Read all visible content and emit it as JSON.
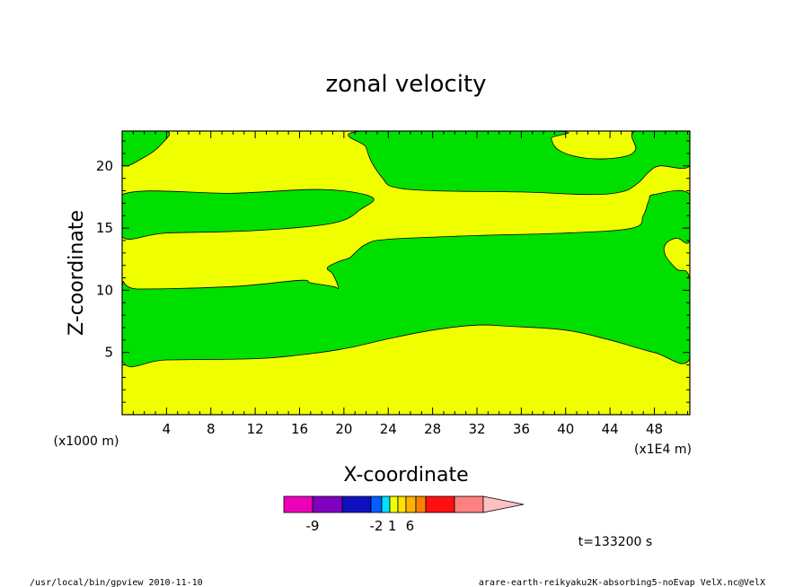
{
  "chart_data": {
    "type": "contour",
    "title": "zonal velocity",
    "xlabel": "X-coordinate",
    "ylabel": "Z-coordinate",
    "x_unit_left": "(x1000 m)",
    "x_unit_right": "(x1E4 m)",
    "xlim": [
      0,
      51.2
    ],
    "ylim": [
      0,
      22.8
    ],
    "x_ticks": [
      4,
      8,
      12,
      16,
      20,
      24,
      28,
      32,
      36,
      40,
      44,
      48
    ],
    "y_ticks": [
      5,
      10,
      15,
      20
    ],
    "colors": {
      "positive": "#f0ff00",
      "negative": "#00e000",
      "outline": "#000000"
    },
    "regions": [
      {
        "label": "green-top-left",
        "sign": "negative",
        "points": [
          [
            0,
            22.8
          ],
          [
            4,
            22.8
          ],
          [
            3.6,
            21.8
          ],
          [
            2,
            20.7
          ],
          [
            0,
            20.1
          ]
        ]
      },
      {
        "label": "green-upper-band",
        "sign": "negative",
        "points": [
          [
            0,
            17.7
          ],
          [
            10,
            17.8
          ],
          [
            18,
            18.1
          ],
          [
            22.5,
            17.5
          ],
          [
            21.5,
            16.5
          ],
          [
            19,
            15.4
          ],
          [
            12,
            14.8
          ],
          [
            4,
            14.6
          ],
          [
            0,
            14.3
          ]
        ]
      },
      {
        "label": "green-main",
        "sign": "negative",
        "points": [
          [
            0,
            10.3
          ],
          [
            1.5,
            10.1
          ],
          [
            10,
            10.3
          ],
          [
            16,
            10.8
          ],
          [
            17,
            10.6
          ],
          [
            19,
            10.3
          ],
          [
            19.5,
            10.2
          ],
          [
            19,
            11.3
          ],
          [
            18.5,
            11.8
          ],
          [
            19.5,
            12.3
          ],
          [
            20.5,
            12.6
          ],
          [
            21,
            13
          ],
          [
            22,
            13.7
          ],
          [
            24,
            14.1
          ],
          [
            32,
            14.4
          ],
          [
            40,
            14.6
          ],
          [
            46,
            15
          ],
          [
            47,
            16
          ],
          [
            47.5,
            17.2
          ],
          [
            48,
            17.7
          ],
          [
            51.2,
            17.7
          ],
          [
            51.2,
            14
          ],
          [
            50,
            14.2
          ],
          [
            49,
            13.7
          ],
          [
            49,
            12.8
          ],
          [
            50,
            11.7
          ],
          [
            51.2,
            10.8
          ],
          [
            51.2,
            4.5
          ],
          [
            48,
            5
          ],
          [
            44,
            6
          ],
          [
            40,
            6.8
          ],
          [
            35,
            7.1
          ],
          [
            32,
            7.2
          ],
          [
            28,
            6.8
          ],
          [
            24,
            6.1
          ],
          [
            20,
            5.3
          ],
          [
            16,
            4.8
          ],
          [
            12,
            4.5
          ],
          [
            4,
            4.4
          ],
          [
            0,
            4.3
          ]
        ]
      },
      {
        "label": "green-upper-middle",
        "sign": "negative",
        "points": [
          [
            21.7,
            22.8
          ],
          [
            22,
            21.5
          ],
          [
            22.5,
            20.3
          ],
          [
            23.5,
            19
          ],
          [
            24.5,
            18.3
          ],
          [
            28,
            18
          ],
          [
            36,
            17.9
          ],
          [
            42,
            17.7
          ],
          [
            45,
            17.9
          ],
          [
            46.5,
            18.6
          ],
          [
            47.5,
            19.5
          ],
          [
            48.5,
            20
          ],
          [
            51.2,
            20
          ],
          [
            51.2,
            22.8
          ],
          [
            46.3,
            22.8
          ],
          [
            46.3,
            21.3
          ],
          [
            45,
            20.7
          ],
          [
            42,
            20.6
          ],
          [
            39.5,
            21.2
          ],
          [
            38.7,
            22.2
          ],
          [
            39,
            22.8
          ]
        ]
      }
    ]
  },
  "colorbar": {
    "colors": [
      "#ee00bb",
      "#8000c0",
      "#1010c0",
      "#0060ff",
      "#00e0ff",
      "#f0ff00",
      "#ffe000",
      "#ffb000",
      "#ff8000",
      "#ff1010",
      "#ff8080",
      "#ffc0c0"
    ],
    "labels": [
      {
        "text": "-9",
        "slot": 1
      },
      {
        "text": "-2",
        "slot": 3.5
      },
      {
        "text": "1",
        "slot": 5.3
      },
      {
        "text": "6",
        "slot": 7.4
      }
    ]
  },
  "time_label": "t=133200 s",
  "footer": {
    "left": "/usr/local/bin/gpview  2010-11-10",
    "right": "arare-earth-reikyaku2K-absorbing5-noEvap_VelX.nc@VelX"
  }
}
